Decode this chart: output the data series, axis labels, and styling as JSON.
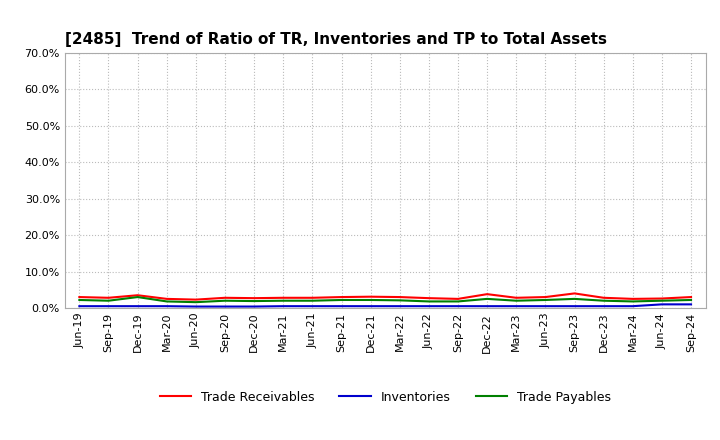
{
  "title": "[2485]  Trend of Ratio of TR, Inventories and TP to Total Assets",
  "x_labels": [
    "Jun-19",
    "Sep-19",
    "Dec-19",
    "Mar-20",
    "Jun-20",
    "Sep-20",
    "Dec-20",
    "Mar-21",
    "Jun-21",
    "Sep-21",
    "Dec-21",
    "Mar-22",
    "Jun-22",
    "Sep-22",
    "Dec-22",
    "Mar-23",
    "Jun-23",
    "Sep-23",
    "Dec-23",
    "Mar-24",
    "Jun-24",
    "Sep-24"
  ],
  "trade_receivables": [
    0.03,
    0.028,
    0.035,
    0.025,
    0.023,
    0.028,
    0.027,
    0.028,
    0.028,
    0.03,
    0.031,
    0.03,
    0.027,
    0.025,
    0.038,
    0.028,
    0.03,
    0.04,
    0.028,
    0.025,
    0.026,
    0.03
  ],
  "inventories": [
    0.005,
    0.005,
    0.005,
    0.005,
    0.004,
    0.004,
    0.004,
    0.005,
    0.005,
    0.005,
    0.005,
    0.005,
    0.005,
    0.005,
    0.005,
    0.005,
    0.005,
    0.005,
    0.005,
    0.005,
    0.01,
    0.01
  ],
  "trade_payables": [
    0.022,
    0.02,
    0.03,
    0.018,
    0.016,
    0.02,
    0.019,
    0.02,
    0.02,
    0.022,
    0.022,
    0.021,
    0.018,
    0.018,
    0.025,
    0.02,
    0.022,
    0.025,
    0.02,
    0.018,
    0.02,
    0.022
  ],
  "tr_color": "#FF0000",
  "inv_color": "#0000CD",
  "tp_color": "#008000",
  "ylim": [
    0.0,
    0.7
  ],
  "yticks": [
    0.0,
    0.1,
    0.2,
    0.3,
    0.4,
    0.5,
    0.6,
    0.7
  ],
  "legend_labels": [
    "Trade Receivables",
    "Inventories",
    "Trade Payables"
  ],
  "background_color": "#FFFFFF",
  "plot_bg_color": "#FFFFFF",
  "grid_color": "#BBBBBB",
  "title_fontsize": 11,
  "tick_fontsize": 8,
  "legend_fontsize": 9
}
